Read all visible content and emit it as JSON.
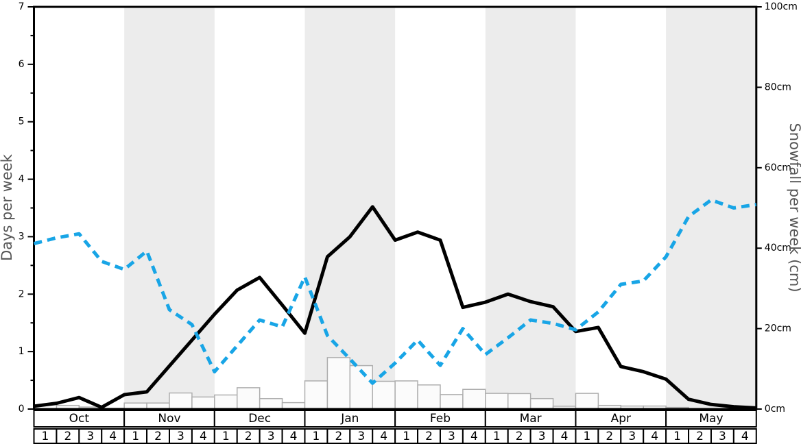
{
  "chart_data": {
    "type": "combo",
    "title": "",
    "months": [
      {
        "name": "Oct",
        "shaded": false
      },
      {
        "name": "Nov",
        "shaded": true
      },
      {
        "name": "Dec",
        "shaded": false
      },
      {
        "name": "Jan",
        "shaded": true
      },
      {
        "name": "Feb",
        "shaded": false
      },
      {
        "name": "Mar",
        "shaded": true
      },
      {
        "name": "Apr",
        "shaded": false
      },
      {
        "name": "May",
        "shaded": true
      }
    ],
    "week_labels": [
      "1",
      "2",
      "3",
      "4"
    ],
    "left_axis": {
      "label": "Days per week",
      "min": 0,
      "max": 7,
      "major_tick_step": 1,
      "minor_tick_step": 0.5
    },
    "right_axis": {
      "label": "Snowfall per week (cm)",
      "min": 0,
      "max": 100,
      "tick_step": 20,
      "tick_suffix": "cm"
    },
    "series": [
      {
        "name": "snowfall-days-per-week",
        "type": "line",
        "style": "solid",
        "color": "#000000",
        "axis": "left",
        "x_unit": "week-boundary",
        "values": [
          0.05,
          0.1,
          0.2,
          0.03,
          0.25,
          0.3,
          0.75,
          1.2,
          1.65,
          2.07,
          2.29,
          1.81,
          1.32,
          2.65,
          3.0,
          3.52,
          2.94,
          3.08,
          2.94,
          1.77,
          1.86,
          2.0,
          1.87,
          1.78,
          1.35,
          1.42,
          0.74,
          0.65,
          0.52,
          0.17,
          0.08,
          0.04,
          0.02
        ]
      },
      {
        "name": "secondary-dashed-line",
        "type": "line",
        "style": "dashed",
        "color": "#18a5e6",
        "axis": "left",
        "x_unit": "week-boundary",
        "values": [
          2.88,
          2.98,
          3.05,
          2.57,
          2.43,
          2.75,
          1.73,
          1.47,
          0.65,
          1.1,
          1.55,
          1.43,
          2.3,
          1.28,
          0.87,
          0.45,
          0.8,
          1.2,
          0.76,
          1.4,
          0.95,
          1.24,
          1.55,
          1.49,
          1.38,
          1.69,
          2.17,
          2.23,
          2.65,
          3.35,
          3.64,
          3.5,
          3.56
        ]
      },
      {
        "name": "snowfall-per-week-cm",
        "type": "bar",
        "color": "#fbfbfb",
        "stroke": "#aeaeae",
        "axis": "right",
        "x_unit": "week",
        "values": [
          0,
          0.9,
          0.5,
          0.2,
          1.5,
          1.5,
          4,
          3,
          3.5,
          5.3,
          2.6,
          1.6,
          7,
          12.8,
          10.8,
          6.9,
          7,
          6,
          3.6,
          4.9,
          3.9,
          3.85,
          2.6,
          0.7,
          3.9,
          0.9,
          0.75,
          0.75,
          0.4,
          0,
          0,
          0
        ]
      }
    ],
    "layout": {
      "band_color": "#ececec",
      "frame_color": "#000000",
      "axis_label_color": "#555555",
      "table_border_color": "#000000",
      "legend": "none",
      "grid": "off"
    }
  }
}
